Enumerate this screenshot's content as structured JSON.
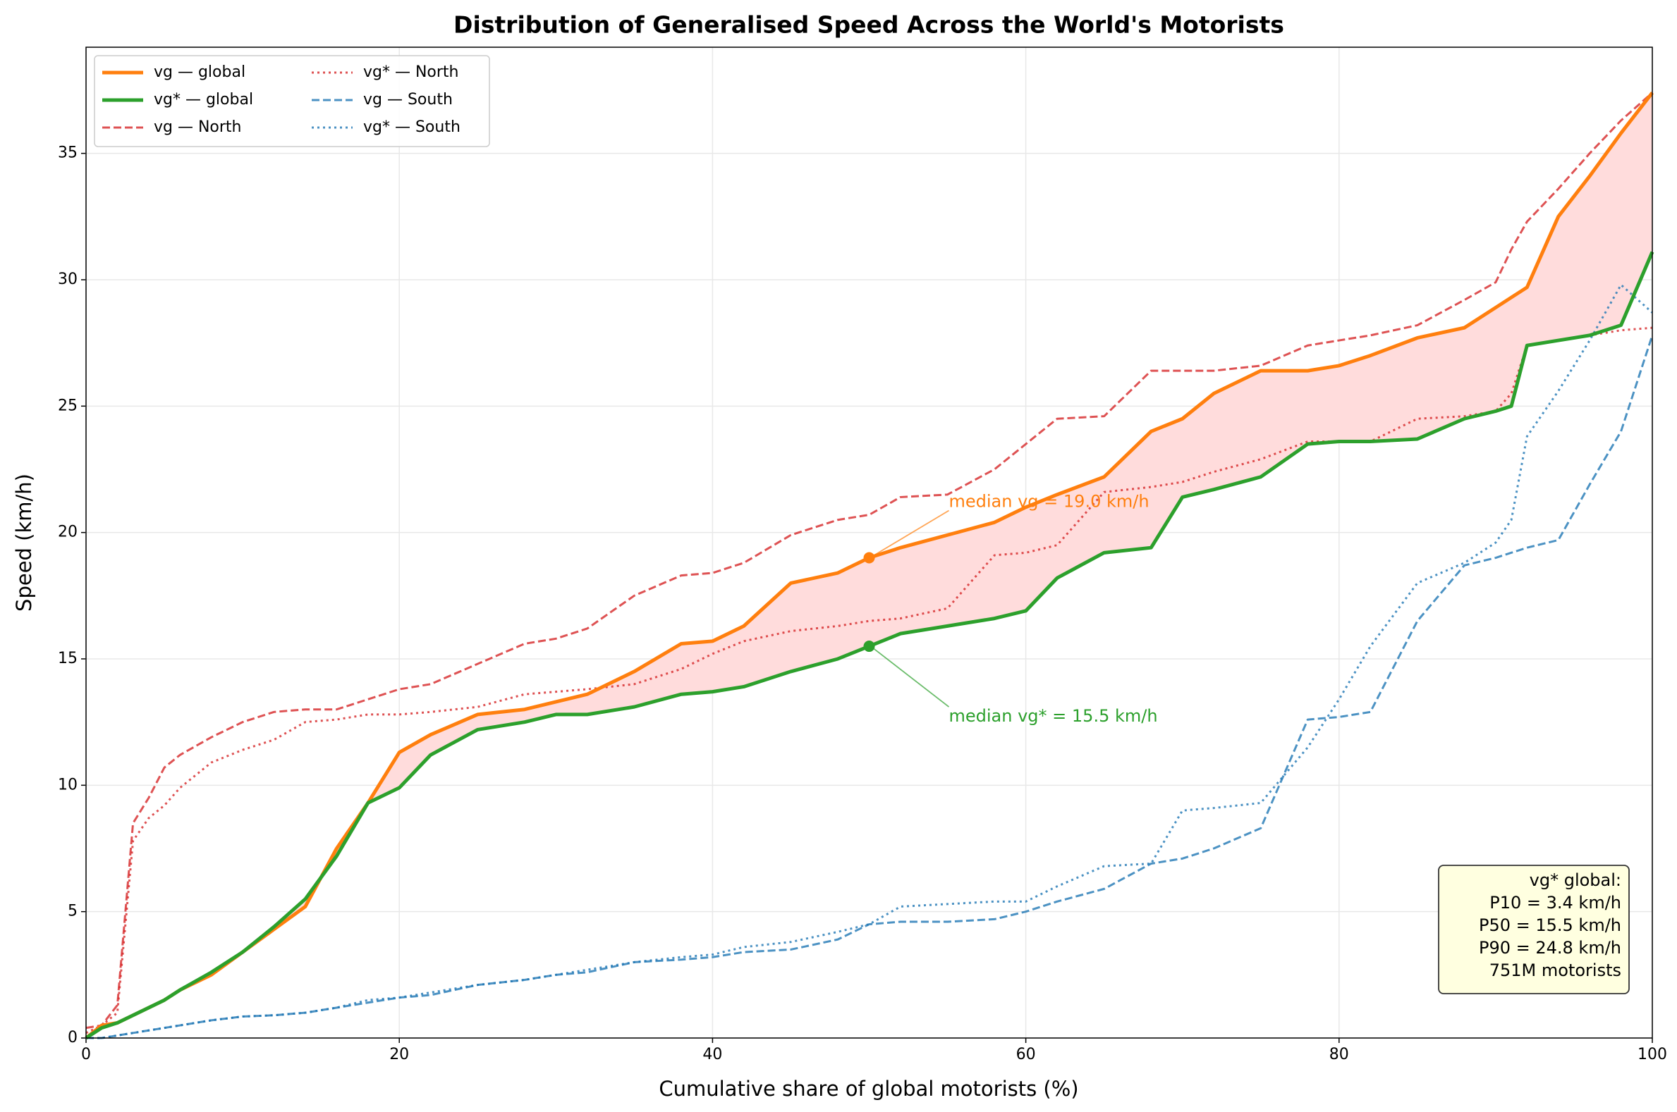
{
  "chart_data": {
    "type": "line",
    "title": "Distribution of Generalised Speed Across the World's Motorists",
    "xlabel": "Cumulative share of global motorists (%)",
    "ylabel": "Speed (km/h)",
    "xlim": [
      0,
      100
    ],
    "ylim": [
      0,
      39.2
    ],
    "xticks": [
      0,
      20,
      40,
      60,
      80,
      100
    ],
    "yticks": [
      0,
      5,
      10,
      15,
      20,
      25,
      30,
      35
    ],
    "grid": true,
    "legend": "upper left",
    "fill_between": {
      "color": "#ffdcdc"
    },
    "x": [
      0,
      1,
      2,
      3,
      4,
      5,
      6,
      8,
      10,
      12,
      14,
      16,
      18,
      20,
      22,
      25,
      28,
      30,
      32,
      35,
      38,
      40,
      42,
      45,
      48,
      50,
      52,
      55,
      58,
      60,
      62,
      65,
      68,
      70,
      72,
      75,
      78,
      80,
      82,
      85,
      88,
      90,
      91,
      92,
      94,
      96,
      98,
      100
    ],
    "series": [
      {
        "name": "vg — global",
        "color": "#ff7f0e",
        "style": "solid",
        "values": [
          0,
          0.5,
          0.6,
          0.9,
          1.2,
          1.5,
          1.9,
          2.5,
          3.4,
          4.3,
          5.2,
          7.5,
          9.3,
          11.3,
          12.0,
          12.8,
          13.0,
          13.3,
          13.6,
          14.5,
          15.6,
          15.7,
          16.3,
          18.0,
          18.4,
          19.0,
          19.4,
          19.9,
          20.4,
          21.0,
          21.5,
          22.2,
          24.0,
          24.5,
          25.5,
          26.4,
          26.4,
          26.6,
          27.0,
          27.7,
          28.1,
          28.9,
          29.3,
          29.7,
          32.5,
          34.1,
          35.8,
          37.4
        ]
      },
      {
        "name": "vg* — global",
        "color": "#2ca02c",
        "style": "solid",
        "values": [
          0,
          0.4,
          0.6,
          0.9,
          1.2,
          1.5,
          1.9,
          2.6,
          3.4,
          4.4,
          5.5,
          7.2,
          9.3,
          9.9,
          11.2,
          12.2,
          12.5,
          12.8,
          12.8,
          13.1,
          13.6,
          13.7,
          13.9,
          14.5,
          15.0,
          15.5,
          16.0,
          16.3,
          16.6,
          16.9,
          18.2,
          19.2,
          19.4,
          21.4,
          21.7,
          22.2,
          23.5,
          23.6,
          23.6,
          23.7,
          24.5,
          24.8,
          25.0,
          27.4,
          27.6,
          27.8,
          28.2,
          31.1
        ]
      },
      {
        "name": "vg — North",
        "color": "#d62728",
        "style": "dashed",
        "values": [
          0.4,
          0.5,
          1.3,
          8.5,
          9.5,
          10.7,
          11.2,
          11.9,
          12.5,
          12.9,
          13.0,
          13.0,
          13.4,
          13.8,
          14.0,
          14.8,
          15.6,
          15.8,
          16.2,
          17.5,
          18.3,
          18.4,
          18.8,
          19.9,
          20.5,
          20.7,
          21.4,
          21.5,
          22.5,
          23.5,
          24.5,
          24.6,
          26.4,
          26.4,
          26.4,
          26.6,
          27.4,
          27.6,
          27.8,
          28.2,
          29.2,
          29.9,
          31.2,
          32.3,
          33.6,
          35.0,
          36.3,
          37.4
        ]
      },
      {
        "name": "vg* — North",
        "color": "#d62728",
        "style": "dotted",
        "values": [
          0.2,
          0.5,
          1.0,
          7.8,
          8.7,
          9.2,
          9.9,
          10.9,
          11.4,
          11.8,
          12.5,
          12.6,
          12.8,
          12.8,
          12.9,
          13.1,
          13.6,
          13.7,
          13.8,
          14.0,
          14.6,
          15.2,
          15.7,
          16.1,
          16.3,
          16.5,
          16.6,
          17.0,
          19.1,
          19.2,
          19.5,
          21.6,
          21.8,
          22.0,
          22.4,
          22.9,
          23.6,
          23.6,
          23.6,
          24.5,
          24.6,
          24.8,
          25.5,
          27.4,
          27.6,
          27.8,
          28.0,
          28.1
        ]
      },
      {
        "name": "vg — South",
        "color": "#1f77b4",
        "style": "dashed",
        "values": [
          0,
          0,
          0.1,
          0.2,
          0.3,
          0.4,
          0.5,
          0.7,
          0.85,
          0.9,
          1.0,
          1.2,
          1.4,
          1.6,
          1.7,
          2.1,
          2.3,
          2.5,
          2.6,
          3.0,
          3.1,
          3.2,
          3.4,
          3.5,
          3.9,
          4.5,
          4.6,
          4.6,
          4.7,
          5.0,
          5.4,
          5.9,
          6.9,
          7.1,
          7.5,
          8.3,
          12.6,
          12.7,
          12.9,
          16.5,
          18.7,
          19.0,
          19.2,
          19.4,
          19.7,
          21.9,
          24.0,
          27.8
        ]
      },
      {
        "name": "vg* — South",
        "color": "#1f77b4",
        "style": "dotted",
        "values": [
          0,
          0,
          0.1,
          0.2,
          0.3,
          0.4,
          0.5,
          0.7,
          0.85,
          0.9,
          1.0,
          1.2,
          1.5,
          1.6,
          1.8,
          2.1,
          2.3,
          2.5,
          2.7,
          3.0,
          3.2,
          3.3,
          3.6,
          3.8,
          4.2,
          4.5,
          5.2,
          5.3,
          5.4,
          5.4,
          6.0,
          6.8,
          6.9,
          9.0,
          9.1,
          9.3,
          11.5,
          13.4,
          15.5,
          18.0,
          18.8,
          19.6,
          20.5,
          23.8,
          25.6,
          27.6,
          29.8,
          28.7
        ]
      }
    ],
    "annotations": [
      {
        "text": "median vg = 19.0 km/h",
        "x": 50,
        "y": 19.0,
        "color": "#ff7f0e"
      },
      {
        "text": "median vg* = 15.5 km/h",
        "x": 50,
        "y": 15.5,
        "color": "#2ca02c"
      }
    ],
    "info_box": [
      "vg* global:",
      "P10 = 3.4 km/h",
      "P50 = 15.5 km/h",
      "P90 = 24.8 km/h",
      "751M motorists"
    ]
  }
}
